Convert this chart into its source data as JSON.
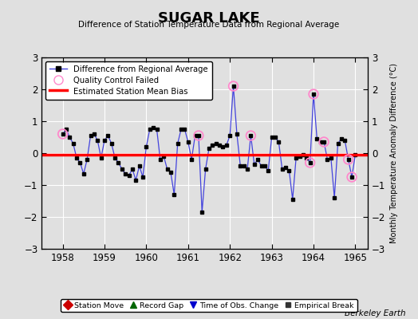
{
  "title": "SUGAR LAKE",
  "subtitle": "Difference of Station Temperature Data from Regional Average",
  "ylabel": "Monthly Temperature Anomaly Difference (°C)",
  "xlabel_years": [
    1958,
    1959,
    1960,
    1961,
    1962,
    1963,
    1964,
    1965
  ],
  "xlim": [
    1957.5,
    1965.3
  ],
  "ylim": [
    -3,
    3
  ],
  "yticks": [
    -3,
    -2,
    -1,
    0,
    1,
    2,
    3
  ],
  "bias_value": -0.05,
  "background_color": "#e0e0e0",
  "plot_bg_color": "#e0e0e0",
  "line_color": "#4444dd",
  "marker_color": "#000000",
  "bias_color": "#ff0000",
  "qc_color": "#ff88cc",
  "footer": "Berkeley Earth",
  "data_x": [
    1958.0,
    1958.083,
    1958.167,
    1958.25,
    1958.333,
    1958.417,
    1958.5,
    1958.583,
    1958.667,
    1958.75,
    1958.833,
    1958.917,
    1959.0,
    1959.083,
    1959.167,
    1959.25,
    1959.333,
    1959.417,
    1959.5,
    1959.583,
    1959.667,
    1959.75,
    1959.833,
    1959.917,
    1960.0,
    1960.083,
    1960.167,
    1960.25,
    1960.333,
    1960.417,
    1960.5,
    1960.583,
    1960.667,
    1960.75,
    1960.833,
    1960.917,
    1961.0,
    1961.083,
    1961.167,
    1961.25,
    1961.333,
    1961.417,
    1961.5,
    1961.583,
    1961.667,
    1961.75,
    1961.833,
    1961.917,
    1962.0,
    1962.083,
    1962.167,
    1962.25,
    1962.333,
    1962.417,
    1962.5,
    1962.583,
    1962.667,
    1962.75,
    1962.833,
    1962.917,
    1963.0,
    1963.083,
    1963.167,
    1963.25,
    1963.333,
    1963.417,
    1963.5,
    1963.583,
    1963.667,
    1963.75,
    1963.833,
    1963.917,
    1964.0,
    1964.083,
    1964.167,
    1964.25,
    1964.333,
    1964.417,
    1964.5,
    1964.583,
    1964.667,
    1964.75,
    1964.833,
    1964.917,
    1965.0
  ],
  "data_y": [
    0.6,
    0.75,
    0.5,
    0.3,
    -0.15,
    -0.3,
    -0.65,
    -0.2,
    0.55,
    0.6,
    0.4,
    -0.15,
    0.4,
    0.55,
    0.3,
    -0.15,
    -0.3,
    -0.5,
    -0.65,
    -0.7,
    -0.5,
    -0.85,
    -0.4,
    -0.75,
    0.2,
    0.75,
    0.8,
    0.75,
    -0.2,
    -0.1,
    -0.5,
    -0.6,
    -1.3,
    0.3,
    0.75,
    0.75,
    0.35,
    -0.2,
    0.55,
    0.55,
    -1.85,
    -0.5,
    0.15,
    0.25,
    0.3,
    0.25,
    0.2,
    0.25,
    0.55,
    2.1,
    0.6,
    -0.4,
    -0.4,
    -0.5,
    0.55,
    -0.35,
    -0.2,
    -0.4,
    -0.4,
    -0.55,
    0.5,
    0.5,
    0.35,
    -0.5,
    -0.45,
    -0.55,
    -1.45,
    -0.15,
    -0.1,
    -0.05,
    -0.15,
    -0.3,
    1.85,
    0.45,
    0.35,
    0.35,
    -0.2,
    -0.15,
    -1.4,
    0.3,
    0.45,
    0.4,
    -0.2,
    -0.75,
    -0.05
  ],
  "qc_failed_x": [
    1958.0,
    1961.25,
    1962.083,
    1962.5,
    1963.917,
    1964.0,
    1964.25,
    1964.833,
    1964.917
  ],
  "qc_failed_y": [
    0.6,
    0.55,
    2.1,
    0.55,
    -0.3,
    1.85,
    0.35,
    -0.2,
    -0.75
  ]
}
